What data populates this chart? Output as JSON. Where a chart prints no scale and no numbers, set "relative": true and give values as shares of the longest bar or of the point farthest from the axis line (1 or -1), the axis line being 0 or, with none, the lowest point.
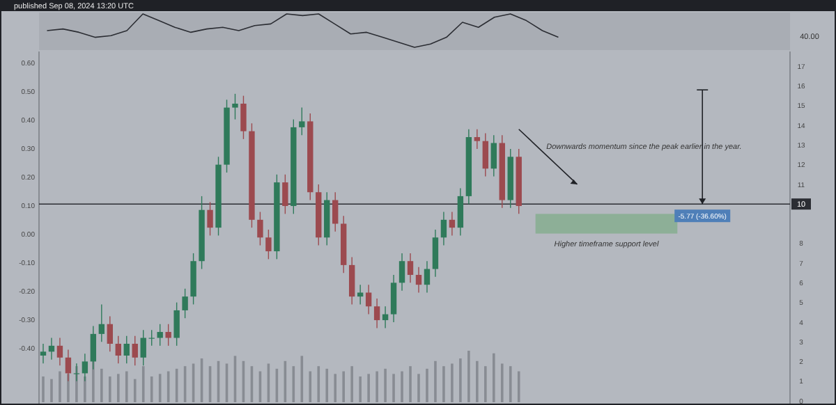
{
  "chart_data": [
    {
      "type": "line",
      "title": "published Sep 08, 2024 13:20 UTC",
      "relative": true,
      "annotations": [
        "40.00"
      ],
      "categories": [
        null,
        null,
        null,
        null,
        null,
        null,
        null,
        null,
        null,
        null,
        null,
        null,
        null,
        null,
        null,
        null,
        null,
        null,
        null,
        null,
        null,
        null,
        null,
        null,
        null,
        null,
        null,
        null,
        null,
        null,
        null,
        null,
        null,
        null,
        null,
        null,
        null,
        null,
        null,
        null,
        null,
        null,
        null,
        null,
        null,
        null,
        null
      ],
      "series": [
        {
          "color": "#2b2d33",
          "values": [
            0.5,
            0.55,
            0.45,
            0.3,
            0.35,
            0.5,
            1,
            0.8,
            0.6,
            0.45,
            0.55,
            0.6,
            0.5,
            0.65,
            0.7,
            1,
            0.95,
            1,
            0.7,
            0.4,
            0.45,
            0.3,
            0.15,
            0,
            0.1,
            0.3,
            0.75,
            0.6,
            0.9,
            1,
            0.8,
            0.5,
            0.3,
            null,
            null,
            null,
            null,
            null,
            null,
            null,
            null,
            null,
            null,
            null,
            null,
            null,
            null
          ]
        }
      ]
    },
    {
      "type": "candlestick",
      "ylim": [
        -0.594,
        0.639
      ],
      "yticks": [
        {
          "value": -0.4,
          "label": "-0.40"
        },
        {
          "value": -0.3,
          "label": "-0.30"
        },
        {
          "value": -0.2,
          "label": "-0.20"
        },
        {
          "value": -0.1,
          "label": "-0.10"
        },
        {
          "value": 0,
          "label": "0.00"
        },
        {
          "value": 0.1,
          "label": "0.10"
        },
        {
          "value": 0.2,
          "label": "0.20"
        },
        {
          "value": 0.3,
          "label": "0.30"
        },
        {
          "value": 0.4,
          "label": "0.40"
        },
        {
          "value": 0.5,
          "label": "0.50"
        },
        {
          "value": 0.6,
          "label": "0.60"
        }
      ],
      "y2lim": [
        -0.14,
        17.75
      ],
      "y2ticks": [
        0,
        1,
        2,
        3,
        4,
        5,
        6,
        7,
        8,
        11,
        12,
        13,
        14,
        15,
        16,
        17
      ],
      "ref_lines": [
        {
          "axis": "y2",
          "value": 10,
          "label": "10",
          "color": "#2b2d33"
        }
      ],
      "bands": [
        {
          "axis": "y2",
          "from": 8.5,
          "to": 9.5,
          "label": "Higher timeframe support level",
          "color": "#86ad8f"
        }
      ],
      "annotations": [
        "Downwards momentum since the peak earlier in the year.",
        "-5.77 (-36.60%)"
      ],
      "categories": [
        null,
        null,
        null,
        null,
        null,
        null,
        null,
        null,
        null,
        null,
        null,
        null,
        null,
        null,
        null,
        null,
        null,
        null,
        null,
        null,
        null,
        null,
        null,
        null,
        null,
        null,
        null,
        null,
        null,
        null,
        null,
        null,
        null,
        null,
        null,
        null,
        null,
        null,
        null,
        null,
        null,
        null,
        null,
        null,
        null,
        null,
        null,
        null,
        null,
        null,
        null,
        null,
        null,
        null,
        null,
        null,
        null,
        null,
        null,
        null,
        null,
        null,
        null,
        null,
        null,
        null,
        null,
        null,
        null,
        null,
        null,
        null,
        null,
        null,
        null,
        null,
        null,
        null,
        null,
        null,
        null,
        null,
        null,
        null,
        null,
        null,
        null,
        null,
        null,
        null
      ],
      "series": [
        {
          "type": "candlestick",
          "axis": "y2",
          "ohlc": [
            [
              2.3,
              2.9,
              1.9,
              2.5
            ],
            [
              2.5,
              3.2,
              2.1,
              2.8
            ],
            [
              2.8,
              3.2,
              1.8,
              2.2
            ],
            [
              2.2,
              2.6,
              1.0,
              1.4
            ],
            [
              1.4,
              1.9,
              1.0,
              1.4
            ],
            [
              1.4,
              2.4,
              1.0,
              2.0
            ],
            [
              2.0,
              3.8,
              1.6,
              3.4
            ],
            [
              3.4,
              4.9,
              3.0,
              3.9
            ],
            [
              3.9,
              4.3,
              2.5,
              2.9
            ],
            [
              2.9,
              3.3,
              1.9,
              2.3
            ],
            [
              2.3,
              3.3,
              1.9,
              2.9
            ],
            [
              2.9,
              3.3,
              1.8,
              2.2
            ],
            [
              2.2,
              3.6,
              1.8,
              3.2
            ],
            [
              3.2,
              3.6,
              2.8,
              3.2
            ],
            [
              3.2,
              3.9,
              2.8,
              3.5
            ],
            [
              3.5,
              3.9,
              2.8,
              3.2
            ],
            [
              3.2,
              5.0,
              2.8,
              4.6
            ],
            [
              4.6,
              5.7,
              4.2,
              5.3
            ],
            [
              5.3,
              7.5,
              4.9,
              7.1
            ],
            [
              7.1,
              10.4,
              6.7,
              9.7
            ],
            [
              9.7,
              10.1,
              8.4,
              8.8
            ],
            [
              8.8,
              12.4,
              8.4,
              12.0
            ],
            [
              12.0,
              15.3,
              11.6,
              14.9
            ],
            [
              14.9,
              15.6,
              14.3,
              15.1
            ],
            [
              15.1,
              15.5,
              13.3,
              13.7
            ],
            [
              13.7,
              14.1,
              8.8,
              9.2
            ],
            [
              9.2,
              9.6,
              7.9,
              8.3
            ],
            [
              8.3,
              8.7,
              7.2,
              7.6
            ],
            [
              7.6,
              11.5,
              7.2,
              11.1
            ],
            [
              11.1,
              11.5,
              9.5,
              9.9
            ],
            [
              9.9,
              14.3,
              9.5,
              13.9
            ],
            [
              13.9,
              14.9,
              13.5,
              14.2
            ],
            [
              14.2,
              14.6,
              10.2,
              10.6
            ],
            [
              10.6,
              11.0,
              7.9,
              8.3
            ],
            [
              8.3,
              10.6,
              7.9,
              10.2
            ],
            [
              10.2,
              10.6,
              8.6,
              9.0
            ],
            [
              9.0,
              9.4,
              6.5,
              6.9
            ],
            [
              6.9,
              7.3,
              4.9,
              5.3
            ],
            [
              5.3,
              5.9,
              4.9,
              5.5
            ],
            [
              5.5,
              5.9,
              4.4,
              4.8
            ],
            [
              4.8,
              5.2,
              3.7,
              4.1
            ],
            [
              4.1,
              4.8,
              3.7,
              4.4
            ],
            [
              4.4,
              6.4,
              4.0,
              6.0
            ],
            [
              6.0,
              7.5,
              5.6,
              7.1
            ],
            [
              7.1,
              7.5,
              6.0,
              6.4
            ],
            [
              6.4,
              6.8,
              5.5,
              5.9
            ],
            [
              5.9,
              7.1,
              5.5,
              6.7
            ],
            [
              6.7,
              8.7,
              6.3,
              8.3
            ],
            [
              8.3,
              9.6,
              7.9,
              9.2
            ],
            [
              9.2,
              9.6,
              8.4,
              8.8
            ],
            [
              8.8,
              10.8,
              8.4,
              10.4
            ],
            [
              10.4,
              13.8,
              10.0,
              13.4
            ],
            [
              13.4,
              13.8,
              12.8,
              13.2
            ],
            [
              13.2,
              13.6,
              11.4,
              11.8
            ],
            [
              11.8,
              13.5,
              11.4,
              13.1
            ],
            [
              13.1,
              13.5,
              9.8,
              10.2
            ],
            [
              10.2,
              12.8,
              9.8,
              12.4
            ],
            [
              12.4,
              12.8,
              9.5,
              9.9
            ],
            null,
            null,
            null,
            null,
            null,
            null,
            null,
            null,
            null,
            null,
            null,
            null,
            null,
            null,
            null,
            null,
            null,
            null,
            null,
            null,
            null,
            null,
            null,
            null,
            null,
            null,
            null,
            null,
            null,
            null,
            null,
            null
          ]
        }
      ]
    },
    {
      "type": "bar",
      "relative": true,
      "categories": [
        null,
        null,
        null,
        null,
        null,
        null,
        null,
        null,
        null,
        null,
        null,
        null,
        null,
        null,
        null,
        null,
        null,
        null,
        null,
        null,
        null,
        null,
        null,
        null,
        null,
        null,
        null,
        null,
        null,
        null,
        null,
        null,
        null,
        null,
        null,
        null,
        null,
        null,
        null,
        null,
        null,
        null,
        null,
        null,
        null,
        null,
        null,
        null,
        null,
        null,
        null,
        null,
        null,
        null,
        null,
        null,
        null,
        null,
        null,
        null,
        null,
        null,
        null,
        null,
        null,
        null,
        null,
        null,
        null,
        null,
        null,
        null,
        null,
        null,
        null,
        null,
        null,
        null,
        null,
        null,
        null,
        null,
        null,
        null,
        null,
        null,
        null,
        null,
        null,
        null
      ],
      "series": [
        {
          "color": "#7d8188",
          "values": [
            0.5,
            0.45,
            0.6,
            0.55,
            0.7,
            0.5,
            0.8,
            0.65,
            0.5,
            0.55,
            0.6,
            0.45,
            0.7,
            0.5,
            0.55,
            0.6,
            0.65,
            0.7,
            0.75,
            0.85,
            0.7,
            0.8,
            0.75,
            0.9,
            0.8,
            0.7,
            0.6,
            0.75,
            0.65,
            0.8,
            0.7,
            0.9,
            0.6,
            0.7,
            0.65,
            0.55,
            0.6,
            0.7,
            0.5,
            0.55,
            0.6,
            0.65,
            0.55,
            0.6,
            0.7,
            0.55,
            0.65,
            0.8,
            0.7,
            0.75,
            0.85,
            1,
            0.8,
            0.7,
            0.95,
            0.75,
            0.7,
            0.6,
            null,
            null,
            null,
            null,
            null,
            null,
            null,
            null,
            null,
            null,
            null,
            null,
            null,
            null,
            null,
            null,
            null,
            null,
            null,
            null,
            null,
            null,
            null,
            null,
            null,
            null,
            null,
            null,
            null,
            null,
            null,
            null
          ]
        }
      ]
    }
  ]
}
